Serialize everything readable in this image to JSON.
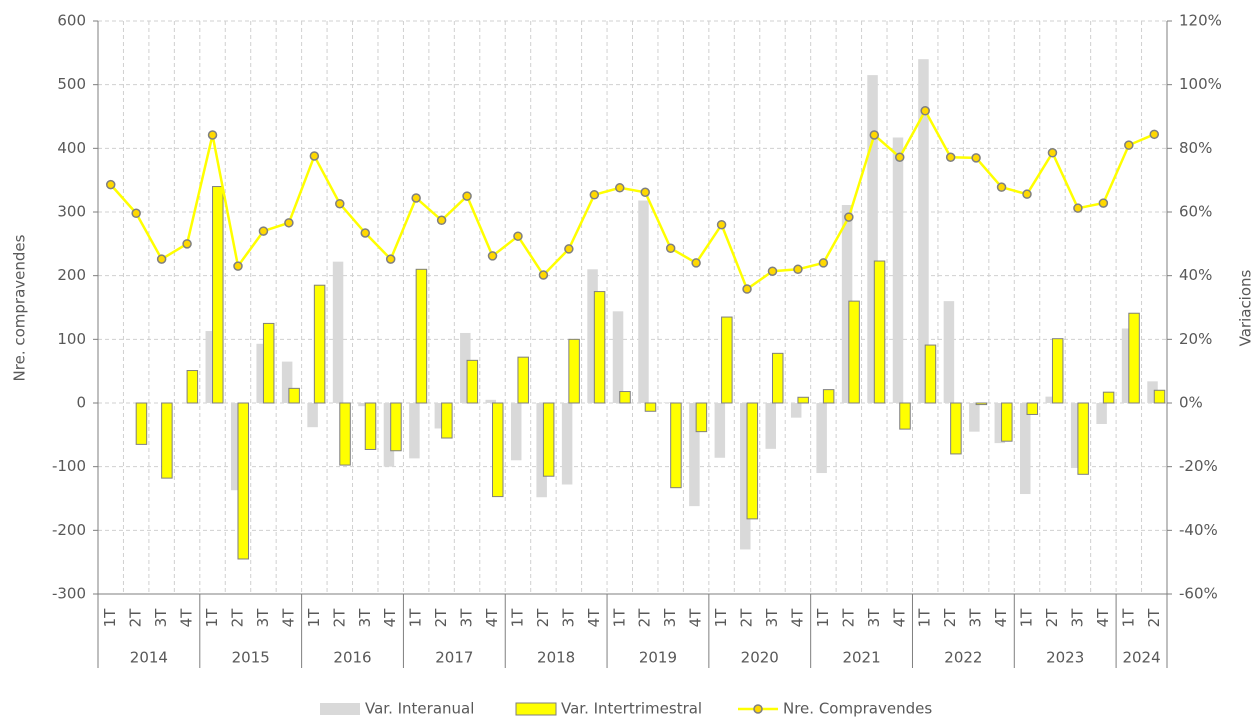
{
  "chart_data": {
    "type": "combo",
    "categories": [
      "1T",
      "2T",
      "3T",
      "4T",
      "1T",
      "2T",
      "3T",
      "4T",
      "1T",
      "2T",
      "3T",
      "4T",
      "1T",
      "2T",
      "3T",
      "4T",
      "1T",
      "2T",
      "3T",
      "4T",
      "1T",
      "2T",
      "3T",
      "4T",
      "1T",
      "2T",
      "3T",
      "4T",
      "1T",
      "2T",
      "3T",
      "4T",
      "1T",
      "2T",
      "3T",
      "4T",
      "1T",
      "2T",
      "3T",
      "4T",
      "1T",
      "2T"
    ],
    "years": [
      "2014",
      "2015",
      "2016",
      "2017",
      "2018",
      "2019",
      "2020",
      "2021",
      "2022",
      "2023",
      "2024"
    ],
    "y_label": "Nre. compravendes",
    "y2_label": "Variacions",
    "ylim": [
      -300,
      600
    ],
    "yticks": [
      -300,
      -200,
      -100,
      0,
      100,
      200,
      300,
      400,
      500,
      600
    ],
    "y2lim": [
      -60,
      120
    ],
    "y2ticks": [
      {
        "value": -60,
        "label": "-60%"
      },
      {
        "value": -40,
        "label": "-40%"
      },
      {
        "value": -20,
        "label": "-20%"
      },
      {
        "value": 0,
        "label": "0%"
      },
      {
        "value": 20,
        "label": "20%"
      },
      {
        "value": 40,
        "label": "40%"
      },
      {
        "value": 60,
        "label": "60%"
      },
      {
        "value": 80,
        "label": "80%"
      },
      {
        "value": 100,
        "label": "100%"
      },
      {
        "value": 120,
        "label": "120%"
      }
    ],
    "grid": true,
    "series": [
      {
        "name": "Var. Interanual",
        "kind": "bar",
        "axis": "y2",
        "color": "#d9d9d9",
        "values": [
          null,
          null,
          null,
          null,
          22.6,
          -27.4,
          18.6,
          13,
          -7.6,
          44.4,
          -1,
          -20,
          -17.4,
          -8,
          22,
          1,
          -18,
          -29.6,
          -25.6,
          42,
          28.8,
          63.6,
          0.2,
          -32.4,
          -17.2,
          -46,
          -14.4,
          -4.6,
          -22,
          62.2,
          103,
          83.4,
          108,
          32,
          -9,
          -12.6,
          -28.6,
          2,
          -20.4,
          -6.6,
          23.4,
          6.8
        ]
      },
      {
        "name": "Var. Intertrimestral",
        "kind": "bar",
        "axis": "y2",
        "color": "#ffff00",
        "values": [
          null,
          -13,
          -23.6,
          10.2,
          68,
          -49,
          25,
          4.6,
          37,
          -19.5,
          -14.6,
          -15,
          42,
          -11,
          13.4,
          -29.4,
          14.4,
          -23,
          20,
          35,
          3.6,
          -2.6,
          -26.6,
          -9,
          27,
          -36.4,
          15.6,
          1.8,
          4.2,
          32,
          44.6,
          -8.2,
          18.2,
          -16,
          -0.5,
          -12,
          -3.6,
          20.2,
          -22.4,
          3.4,
          28.2,
          4
        ]
      },
      {
        "name": "Nre. Compravendes",
        "kind": "line",
        "color": "#ffff00",
        "values": [
          343,
          298,
          226,
          250,
          421,
          215,
          270,
          283,
          388,
          313,
          267,
          226,
          322,
          287,
          325,
          231,
          262,
          201,
          242,
          327,
          338,
          331,
          243,
          220,
          280,
          179,
          207,
          210,
          220,
          292,
          421,
          386,
          459,
          386,
          385,
          339,
          328,
          393,
          306,
          314,
          405,
          422
        ]
      }
    ]
  }
}
